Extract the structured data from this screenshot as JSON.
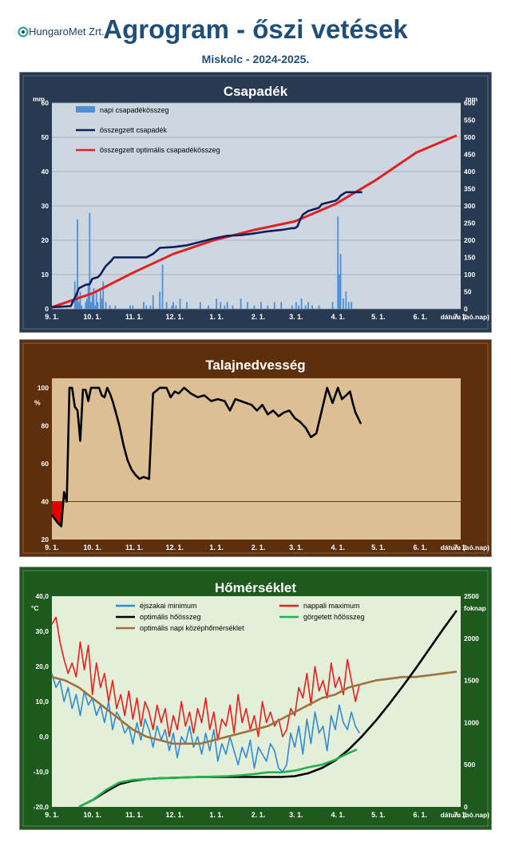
{
  "header": {
    "logo_text": "HungaroMet Zrt.",
    "title": "Agrogram - őszi vetések",
    "subtitle": "Miskolc  - 2024-2025."
  },
  "months": [
    "9. 1.",
    "10. 1.",
    "11. 1.",
    "12. 1.",
    "1. 1.",
    "2. 1.",
    "3. 1.",
    "4. 1.",
    "5. 1.",
    "6. 1.",
    "7. 1."
  ],
  "chart_data": [
    {
      "type": "bar",
      "title": "Csapadék",
      "background": "#cdd7e2",
      "frame": "#283a52",
      "xlabel": "dátum (hó.nap)",
      "ylabel_left": "mm",
      "ylabel_right": "mm",
      "x_unit": "days since 9. 1.",
      "ylim_left": [
        0,
        60
      ],
      "ylim_right": [
        0,
        600
      ],
      "yticks_left": [
        0,
        10,
        20,
        30,
        40,
        50,
        60
      ],
      "yticks_right": [
        0,
        50,
        100,
        150,
        200,
        250,
        300,
        350,
        400,
        450,
        500,
        550,
        600
      ],
      "legend": "top-left",
      "series": [
        {
          "name": "napi csapadékösszeg",
          "kind": "bar",
          "axis": "left",
          "color": "#4f8fd6",
          "x": [
            17,
            18,
            19,
            20,
            21,
            22,
            25,
            26,
            27,
            28,
            29,
            30,
            31,
            32,
            33,
            34,
            36,
            37,
            38,
            40,
            43,
            47,
            58,
            60,
            68,
            70,
            73,
            75,
            80,
            82,
            85,
            89,
            90,
            92,
            95,
            100,
            110,
            116,
            122,
            125,
            128,
            130,
            134,
            140,
            145,
            150,
            155,
            160,
            165,
            170,
            178,
            181,
            183,
            185,
            188,
            190,
            193,
            198,
            208,
            212,
            213,
            214,
            216,
            218,
            220,
            222
          ],
          "values": [
            8,
            3,
            26,
            2,
            5,
            1,
            2,
            3,
            7,
            28,
            2,
            4,
            6,
            1,
            5,
            2,
            6,
            3,
            8,
            2,
            1,
            1,
            1,
            1,
            2,
            1,
            1,
            4,
            5,
            13,
            2,
            1,
            2,
            1,
            3,
            2,
            2,
            1,
            3,
            2,
            1,
            2,
            1,
            3,
            2,
            1,
            2,
            1,
            2,
            2,
            1,
            2,
            1,
            3,
            1,
            2,
            1,
            1,
            2,
            27,
            10,
            16,
            3,
            5,
            2,
            2
          ]
        },
        {
          "name": "összegzett csapadék",
          "kind": "line",
          "axis": "right",
          "color": "#0a1f5c",
          "x": [
            0,
            14,
            16,
            18,
            20,
            25,
            28,
            30,
            34,
            36,
            38,
            40,
            44,
            46,
            48,
            50,
            60,
            70,
            75,
            80,
            90,
            100,
            110,
            120,
            130,
            140,
            150,
            160,
            170,
            178,
            180,
            182,
            184,
            186,
            190,
            198,
            200,
            210,
            212,
            214,
            216,
            218,
            222,
            226,
            230
          ],
          "values": [
            5,
            8,
            25,
            40,
            60,
            70,
            72,
            88,
            92,
            100,
            113,
            125,
            140,
            150,
            150,
            150,
            150,
            150,
            160,
            178,
            180,
            185,
            195,
            205,
            213,
            215,
            220,
            226,
            230,
            235,
            235,
            240,
            260,
            275,
            285,
            295,
            305,
            315,
            320,
            330,
            335,
            340,
            340,
            340,
            340
          ]
        },
        {
          "name": "összegzett optimális csapadékösszeg",
          "kind": "line",
          "axis": "right",
          "color": "#e32020",
          "x": [
            0,
            30,
            60,
            90,
            120,
            150,
            180,
            210,
            240,
            270,
            300
          ],
          "values": [
            5,
            45,
            105,
            160,
            200,
            230,
            255,
            305,
            375,
            455,
            505
          ]
        }
      ]
    },
    {
      "type": "line",
      "title": "Talajnedvesség",
      "background": "#ddbf95",
      "frame": "#5e2f0d",
      "xlabel": "dátum (hó.nap)",
      "ylabel": "%",
      "x_unit": "days since 9. 1.",
      "ylim": [
        20,
        105
      ],
      "yticks": [
        20,
        40,
        60,
        80,
        100
      ],
      "threshold": 40,
      "series": [
        {
          "name": "talajnedvesség",
          "kind": "line",
          "color": "#000000",
          "x": [
            0,
            4,
            7,
            9,
            11,
            13,
            15,
            17,
            19,
            21,
            23,
            25,
            27,
            29,
            31,
            33,
            35,
            37,
            39,
            41,
            43,
            45,
            47,
            50,
            53,
            56,
            59,
            62,
            65,
            68,
            72,
            75,
            80,
            85,
            88,
            91,
            94,
            98,
            103,
            108,
            113,
            118,
            123,
            128,
            132,
            136,
            140,
            144,
            148,
            152,
            156,
            160,
            164,
            168,
            172,
            176,
            180,
            184,
            188,
            192,
            196,
            200,
            204,
            208,
            212,
            215,
            218,
            221,
            223,
            225,
            227,
            229
          ],
          "values": [
            33,
            29,
            27,
            45,
            40,
            100,
            100,
            90,
            88,
            72,
            99,
            99,
            93,
            100,
            100,
            100,
            100,
            96,
            95,
            100,
            97,
            93,
            88,
            80,
            70,
            62,
            57,
            54,
            52,
            53,
            52,
            97,
            100,
            100,
            95,
            98,
            97,
            100,
            97,
            95,
            96,
            93,
            94,
            93,
            88,
            94,
            93,
            92,
            91,
            88,
            91,
            86,
            88,
            85,
            87,
            88,
            84,
            82,
            79,
            74,
            76,
            88,
            100,
            92,
            100,
            94,
            96,
            98,
            92,
            87,
            84,
            81
          ]
        }
      ]
    },
    {
      "type": "line",
      "title": "Hőmérséklet",
      "background": "#e3efd9",
      "frame": "#1e5a1e",
      "xlabel": "dátum (hó.nap)",
      "ylabel_left": "°C",
      "ylabel_right": "foknap",
      "x_unit": "days since 9. 1.",
      "ylim_left": [
        -20,
        40
      ],
      "ylim_right": [
        0,
        2500
      ],
      "yticks_left": [
        "40,0",
        "30,0",
        "20,0",
        "10,0",
        "0,0",
        "-10,0",
        "-20,0"
      ],
      "yticks_right": [
        0,
        500,
        1000,
        1500,
        2000,
        2500
      ],
      "legend": "top",
      "series": [
        {
          "name": "éjszakai minimum",
          "kind": "line",
          "axis": "left",
          "color": "#2e8bd6",
          "x": [
            0,
            3,
            6,
            9,
            12,
            15,
            18,
            21,
            24,
            27,
            30,
            33,
            36,
            39,
            42,
            45,
            48,
            51,
            54,
            57,
            60,
            63,
            66,
            69,
            72,
            75,
            78,
            81,
            84,
            87,
            90,
            93,
            96,
            99,
            102,
            105,
            108,
            111,
            114,
            117,
            120,
            123,
            126,
            129,
            132,
            135,
            138,
            141,
            144,
            147,
            150,
            153,
            156,
            159,
            162,
            165,
            168,
            171,
            174,
            177,
            180,
            183,
            186,
            189,
            192,
            195,
            198,
            201,
            204,
            207,
            210,
            213,
            216,
            219,
            222,
            225,
            228
          ],
          "values": [
            18,
            14,
            16,
            10,
            14,
            8,
            12,
            6,
            13,
            9,
            11,
            6,
            9,
            4,
            10,
            2,
            7,
            5,
            1,
            3,
            -2,
            4,
            -1,
            5,
            2,
            -3,
            3,
            -1,
            2,
            -4,
            1,
            -6,
            0,
            -2,
            3,
            -3,
            0,
            -5,
            1,
            -4,
            2,
            -7,
            -2,
            -5,
            0,
            -4,
            -8,
            -3,
            -6,
            -1,
            -9,
            -3,
            -5,
            -7,
            -2,
            -4,
            -9,
            -10,
            -8,
            1,
            -3,
            3,
            -5,
            5,
            -2,
            7,
            1,
            3,
            -4,
            6,
            2,
            9,
            4,
            2,
            7,
            3,
            1
          ]
        },
        {
          "name": "nappali maximum",
          "kind": "line",
          "axis": "left",
          "color": "#ee1c1c",
          "x": [
            0,
            3,
            6,
            9,
            12,
            15,
            18,
            21,
            24,
            27,
            30,
            33,
            36,
            39,
            42,
            45,
            48,
            51,
            54,
            57,
            60,
            63,
            66,
            69,
            72,
            75,
            78,
            81,
            84,
            87,
            90,
            93,
            96,
            99,
            102,
            105,
            108,
            111,
            114,
            117,
            120,
            123,
            126,
            129,
            132,
            135,
            138,
            141,
            144,
            147,
            150,
            153,
            156,
            159,
            162,
            165,
            168,
            171,
            174,
            177,
            180,
            183,
            186,
            189,
            192,
            195,
            198,
            201,
            204,
            207,
            210,
            213,
            216,
            219,
            222,
            225,
            228
          ],
          "values": [
            32,
            34,
            27,
            22,
            18,
            21,
            17,
            27,
            19,
            26,
            12,
            21,
            14,
            18,
            10,
            16,
            8,
            12,
            6,
            13,
            5,
            11,
            3,
            10,
            7,
            2,
            9,
            4,
            8,
            0,
            6,
            2,
            10,
            3,
            7,
            1,
            8,
            4,
            11,
            2,
            7,
            -1,
            5,
            3,
            9,
            1,
            12,
            4,
            8,
            2,
            6,
            0,
            10,
            4,
            7,
            3,
            5,
            0,
            2,
            8,
            6,
            14,
            11,
            18,
            9,
            20,
            13,
            16,
            11,
            21,
            14,
            17,
            12,
            22,
            16,
            10,
            15
          ]
        },
        {
          "name": "optimális hőösszeg",
          "kind": "line",
          "axis": "right",
          "color": "#000000",
          "x": [
            20,
            30,
            40,
            50,
            60,
            70,
            80,
            90,
            100,
            110,
            120,
            130,
            140,
            150,
            160,
            170,
            180,
            190,
            200,
            210,
            220,
            230,
            240,
            250,
            260,
            270,
            280,
            290,
            300
          ],
          "values": [
            0,
            80,
            180,
            270,
            310,
            330,
            340,
            345,
            350,
            355,
            355,
            355,
            355,
            355,
            355,
            355,
            365,
            400,
            460,
            550,
            680,
            840,
            1020,
            1220,
            1430,
            1650,
            1880,
            2110,
            2330
          ]
        },
        {
          "name": "görgetett hőösszeg",
          "kind": "line",
          "axis": "right",
          "color": "#22b14c",
          "x": [
            20,
            30,
            40,
            50,
            60,
            70,
            80,
            90,
            100,
            110,
            120,
            130,
            140,
            150,
            160,
            170,
            180,
            190,
            200,
            210,
            220,
            226
          ],
          "values": [
            0,
            80,
            200,
            290,
            320,
            330,
            340,
            345,
            350,
            355,
            360,
            365,
            375,
            390,
            410,
            410,
            430,
            470,
            500,
            560,
            640,
            680
          ]
        },
        {
          "name": "optimális napi középhőmérséklet",
          "kind": "line",
          "axis": "left",
          "color": "#a0703d",
          "x": [
            0,
            10,
            20,
            30,
            40,
            50,
            60,
            70,
            80,
            90,
            100,
            110,
            120,
            130,
            140,
            150,
            160,
            170,
            180,
            190,
            200,
            210,
            220,
            230,
            240,
            250,
            260,
            270,
            280,
            290,
            300
          ],
          "values": [
            17,
            16,
            14,
            11,
            8,
            5,
            2,
            0,
            -1,
            -2,
            -2,
            -2,
            -1,
            0,
            1,
            2,
            3,
            5,
            7,
            9,
            11,
            12,
            14,
            15,
            16,
            16.5,
            17,
            17,
            17.5,
            18,
            18.5
          ]
        }
      ]
    }
  ]
}
